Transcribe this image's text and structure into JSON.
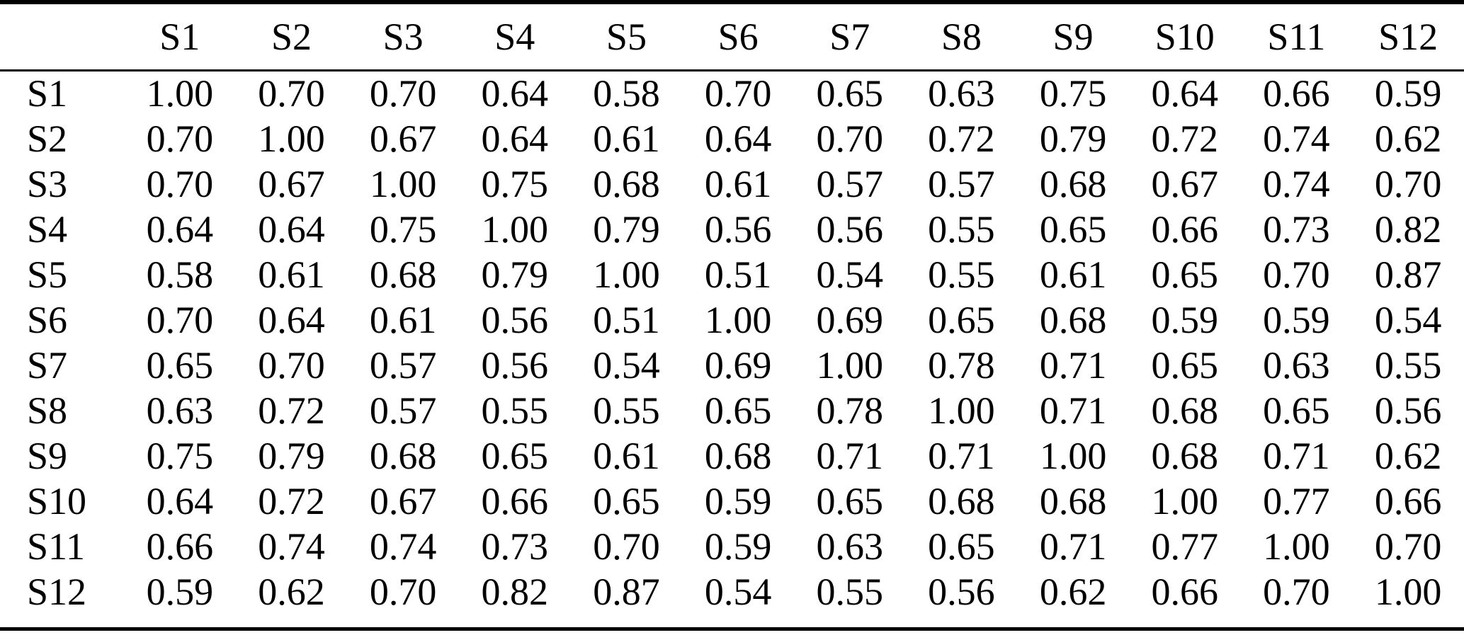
{
  "colors": {
    "background": "#ffffff",
    "text": "#000000",
    "rule": "#000000"
  },
  "table": {
    "corner_label": "",
    "column_headers": [
      "S1",
      "S2",
      "S3",
      "S4",
      "S5",
      "S6",
      "S7",
      "S8",
      "S9",
      "S10",
      "S11",
      "S12"
    ],
    "rows": [
      {
        "label": "S1",
        "values": [
          "1.00",
          "0.70",
          "0.70",
          "0.64",
          "0.58",
          "0.70",
          "0.65",
          "0.63",
          "0.75",
          "0.64",
          "0.66",
          "0.59"
        ]
      },
      {
        "label": "S2",
        "values": [
          "0.70",
          "1.00",
          "0.67",
          "0.64",
          "0.61",
          "0.64",
          "0.70",
          "0.72",
          "0.79",
          "0.72",
          "0.74",
          "0.62"
        ]
      },
      {
        "label": "S3",
        "values": [
          "0.70",
          "0.67",
          "1.00",
          "0.75",
          "0.68",
          "0.61",
          "0.57",
          "0.57",
          "0.68",
          "0.67",
          "0.74",
          "0.70"
        ]
      },
      {
        "label": "S4",
        "values": [
          "0.64",
          "0.64",
          "0.75",
          "1.00",
          "0.79",
          "0.56",
          "0.56",
          "0.55",
          "0.65",
          "0.66",
          "0.73",
          "0.82"
        ]
      },
      {
        "label": "S5",
        "values": [
          "0.58",
          "0.61",
          "0.68",
          "0.79",
          "1.00",
          "0.51",
          "0.54",
          "0.55",
          "0.61",
          "0.65",
          "0.70",
          "0.87"
        ]
      },
      {
        "label": "S6",
        "values": [
          "0.70",
          "0.64",
          "0.61",
          "0.56",
          "0.51",
          "1.00",
          "0.69",
          "0.65",
          "0.68",
          "0.59",
          "0.59",
          "0.54"
        ]
      },
      {
        "label": "S7",
        "values": [
          "0.65",
          "0.70",
          "0.57",
          "0.56",
          "0.54",
          "0.69",
          "1.00",
          "0.78",
          "0.71",
          "0.65",
          "0.63",
          "0.55"
        ]
      },
      {
        "label": "S8",
        "values": [
          "0.63",
          "0.72",
          "0.57",
          "0.55",
          "0.55",
          "0.65",
          "0.78",
          "1.00",
          "0.71",
          "0.68",
          "0.65",
          "0.56"
        ]
      },
      {
        "label": "S9",
        "values": [
          "0.75",
          "0.79",
          "0.68",
          "0.65",
          "0.61",
          "0.68",
          "0.71",
          "0.71",
          "1.00",
          "0.68",
          "0.71",
          "0.62"
        ]
      },
      {
        "label": "S10",
        "values": [
          "0.64",
          "0.72",
          "0.67",
          "0.66",
          "0.65",
          "0.59",
          "0.65",
          "0.68",
          "0.68",
          "1.00",
          "0.77",
          "0.66"
        ]
      },
      {
        "label": "S11",
        "values": [
          "0.66",
          "0.74",
          "0.74",
          "0.73",
          "0.70",
          "0.59",
          "0.63",
          "0.65",
          "0.71",
          "0.77",
          "1.00",
          "0.70"
        ]
      },
      {
        "label": "S12",
        "values": [
          "0.59",
          "0.62",
          "0.70",
          "0.82",
          "0.87",
          "0.54",
          "0.55",
          "0.56",
          "0.62",
          "0.66",
          "0.70",
          "1.00"
        ]
      }
    ]
  }
}
